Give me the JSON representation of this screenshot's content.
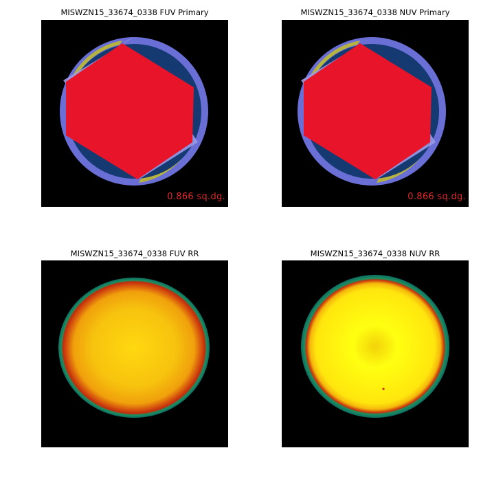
{
  "panels": {
    "fuv_primary": {
      "title": "MISWZN15_33674_0338 FUV Primary",
      "area_label": "0.866 sq.dg."
    },
    "nuv_primary": {
      "title": "MISWZN15_33674_0338 NUV Primary",
      "area_label": "0.866 sq.dg."
    },
    "fuv_rr": {
      "title": "MISWZN15_33674_0338 FUV RR"
    },
    "nuv_rr": {
      "title": "MISWZN15_33674_0338 NUV RR"
    }
  },
  "colors": {
    "background": "#000000",
    "hexagon": "#e8152a",
    "coverage_dark": "#153a72",
    "coverage_ring": "#6a6fd6",
    "coverage_light": "#9a9ae6",
    "coverage_yellow": "#b6b33e",
    "area_text": "#e02828",
    "rr_center": "#ffff10",
    "rr_mid": "#f5b80c",
    "rr_red": "#c8300c",
    "rr_green": "#1a9060",
    "rr_teal": "#0f6e62"
  }
}
